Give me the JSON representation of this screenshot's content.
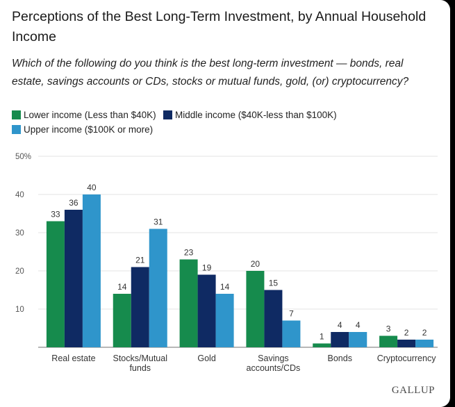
{
  "title": "Perceptions of the Best Long-Term Investment, by Annual Household Income",
  "subtitle": "Which of the following do you think is the best long-term investment — bonds, real estate, savings accounts or CDs, stocks or mutual funds, gold, (or) cryptocurrency?",
  "legend": [
    {
      "label": "Lower income (Less than $40K)",
      "color": "#168b4d"
    },
    {
      "label": "Middle income ($40K-less than $100K)",
      "color": "#0f2a63"
    },
    {
      "label": "Upper income ($100K or more)",
      "color": "#2f95cb"
    }
  ],
  "logo": "GALLUP",
  "chart_data": {
    "type": "bar",
    "categories": [
      [
        "Real estate"
      ],
      [
        "Stocks/Mutual",
        "funds"
      ],
      [
        "Gold"
      ],
      [
        "Savings",
        "accounts/CDs"
      ],
      [
        "Bonds"
      ],
      [
        "Cryptocurrency"
      ]
    ],
    "series": [
      {
        "name": "Lower income (Less than $40K)",
        "color": "#168b4d",
        "values": [
          33,
          14,
          23,
          20,
          1,
          3
        ]
      },
      {
        "name": "Middle income ($40K-less than $100K)",
        "color": "#0f2a63",
        "values": [
          36,
          21,
          19,
          15,
          4,
          2
        ]
      },
      {
        "name": "Upper income ($100K or more)",
        "color": "#2f95cb",
        "values": [
          40,
          31,
          14,
          7,
          4,
          2
        ]
      }
    ],
    "yticks": [
      0,
      10,
      20,
      30,
      40,
      50
    ],
    "ytick_labels": [
      "",
      "10",
      "20",
      "30",
      "40",
      "50%"
    ],
    "ylim": [
      0,
      50
    ],
    "grid": true,
    "legend_position": "top-left"
  }
}
